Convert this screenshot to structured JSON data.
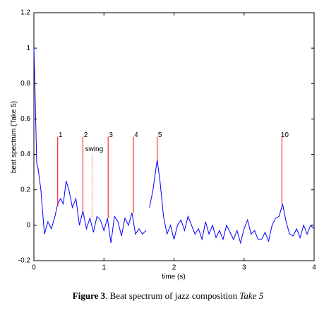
{
  "chart_data": {
    "type": "line",
    "xlabel": "time (s)",
    "ylabel": "beat spectrum (Take 5)",
    "caption": {
      "label": "Figure 3",
      "text": ". Beat spectrum of jazz composition ",
      "title": "Take 5"
    },
    "xlim": [
      0,
      4
    ],
    "xticks": [
      0,
      1,
      2,
      3,
      4
    ],
    "ylim": [
      -0.2,
      1.2
    ],
    "yticks": [
      -0.2,
      0,
      0.2,
      0.4,
      0.6,
      0.8,
      1,
      1.2
    ],
    "series": [
      {
        "color": "#0000ff",
        "x": [
          0,
          0.02,
          0.04,
          0.06,
          0.1,
          0.15,
          0.2,
          0.25,
          0.3,
          0.34,
          0.38,
          0.42,
          0.46,
          0.5,
          0.55,
          0.6,
          0.65,
          0.7,
          0.75,
          0.8,
          0.85,
          0.9,
          0.95,
          1.0,
          1.05,
          1.1,
          1.15,
          1.2,
          1.25,
          1.3,
          1.35,
          1.4,
          1.45,
          1.5,
          1.55,
          1.6,
          1.62,
          1.65,
          1.7,
          1.76,
          1.8,
          1.85,
          1.9,
          1.95,
          2.0,
          2.05,
          2.1,
          2.15,
          2.2,
          2.25,
          2.3,
          2.35,
          2.4,
          2.45,
          2.5,
          2.55,
          2.6,
          2.65,
          2.7,
          2.75,
          2.8,
          2.85,
          2.9,
          2.95,
          3.0,
          3.05,
          3.1,
          3.15,
          3.2,
          3.25,
          3.3,
          3.35,
          3.4,
          3.45,
          3.5,
          3.55,
          3.6,
          3.65,
          3.7,
          3.75,
          3.8,
          3.85,
          3.9,
          3.95,
          4.0
        ],
        "values": [
          1.0,
          0.7,
          0.35,
          0.32,
          0.2,
          -0.05,
          0.02,
          -0.02,
          0.05,
          0.12,
          0.15,
          0.12,
          0.25,
          0.2,
          0.1,
          0.15,
          0.0,
          0.08,
          -0.02,
          0.04,
          -0.04,
          0.05,
          0.03,
          -0.03,
          0.04,
          -0.1,
          0.05,
          0.02,
          -0.06,
          0.04,
          0.0,
          0.07,
          -0.05,
          -0.02,
          -0.05,
          -0.03,
          null,
          0.1,
          0.2,
          0.37,
          0.25,
          0.05,
          -0.05,
          0.0,
          -0.08,
          0.0,
          0.03,
          -0.03,
          0.05,
          0.0,
          -0.05,
          -0.02,
          -0.08,
          0.02,
          -0.05,
          0.0,
          -0.07,
          -0.03,
          -0.08,
          0.0,
          -0.04,
          -0.08,
          -0.03,
          -0.1,
          -0.02,
          0.03,
          -0.05,
          -0.03,
          -0.08,
          -0.08,
          -0.04,
          -0.09,
          0.0,
          0.04,
          0.05,
          0.12,
          0.02,
          -0.05,
          -0.06,
          -0.02,
          -0.07,
          0.0,
          -0.05,
          0.0,
          -0.02
        ]
      }
    ],
    "markers": [
      {
        "label": "1",
        "x": 0.34,
        "top": 0.5,
        "bottom": 0.11,
        "color": "#ff0000"
      },
      {
        "label": "2",
        "x": 0.7,
        "top": 0.5,
        "bottom": 0.08,
        "color": "#ff0000"
      },
      {
        "label": "3",
        "x": 1.06,
        "top": 0.5,
        "bottom": 0.04,
        "color": "#ff0000"
      },
      {
        "label": "4",
        "x": 1.42,
        "top": 0.5,
        "bottom": 0.07,
        "color": "#ff0000"
      },
      {
        "label": "5",
        "x": 1.76,
        "top": 0.5,
        "bottom": 0.36,
        "color": "#ff0000"
      },
      {
        "label": "10",
        "x": 3.54,
        "top": 0.5,
        "bottom": 0.12,
        "color": "#ff0000"
      }
    ],
    "swing": {
      "label": "swing",
      "x": 0.83,
      "top": 0.4,
      "bottom": 0.04,
      "color": "#ff0000"
    }
  }
}
